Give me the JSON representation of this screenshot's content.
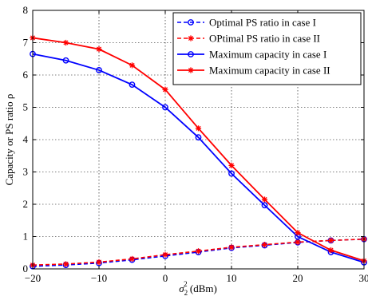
{
  "chart_data": {
    "type": "line",
    "title": "",
    "xlabel": "σ",
    "xlabel_sub": "2",
    "xlabel_sup": "2",
    "xlabel_unit": " (dBm)",
    "ylabel": "Capacity or PS ratio ρ",
    "xlim": [
      -20,
      30
    ],
    "ylim": [
      0,
      8
    ],
    "xticks": [
      -20,
      -10,
      0,
      10,
      20,
      30
    ],
    "yticks": [
      0,
      1,
      2,
      3,
      4,
      5,
      6,
      7,
      8
    ],
    "grid": true,
    "legend_position": "top-right",
    "x": [
      -20,
      -15,
      -10,
      -5,
      0,
      5,
      10,
      15,
      20,
      25,
      30
    ],
    "series": [
      {
        "name": "Optimal PS ratio in case I",
        "color": "#0000ff",
        "style": "dashed",
        "marker": "circle",
        "values": [
          0.08,
          0.12,
          0.18,
          0.28,
          0.4,
          0.52,
          0.65,
          0.73,
          0.82,
          0.88,
          0.92
        ]
      },
      {
        "name": "OPtimal PS ratio in case II",
        "color": "#ff0000",
        "style": "dashed",
        "marker": "star",
        "values": [
          0.12,
          0.15,
          0.21,
          0.31,
          0.44,
          0.55,
          0.67,
          0.75,
          0.83,
          0.88,
          0.92
        ]
      },
      {
        "name": "Maximum capacity in case I",
        "color": "#0000ff",
        "style": "solid",
        "marker": "circle",
        "values": [
          6.65,
          6.45,
          6.15,
          5.7,
          5.0,
          4.07,
          2.95,
          1.97,
          1.0,
          0.52,
          0.2
        ]
      },
      {
        "name": "Maximum capacity in case II",
        "color": "#ff0000",
        "style": "solid",
        "marker": "star",
        "values": [
          7.15,
          7.0,
          6.8,
          6.3,
          5.55,
          4.35,
          3.2,
          2.15,
          1.12,
          0.58,
          0.25
        ]
      }
    ]
  }
}
